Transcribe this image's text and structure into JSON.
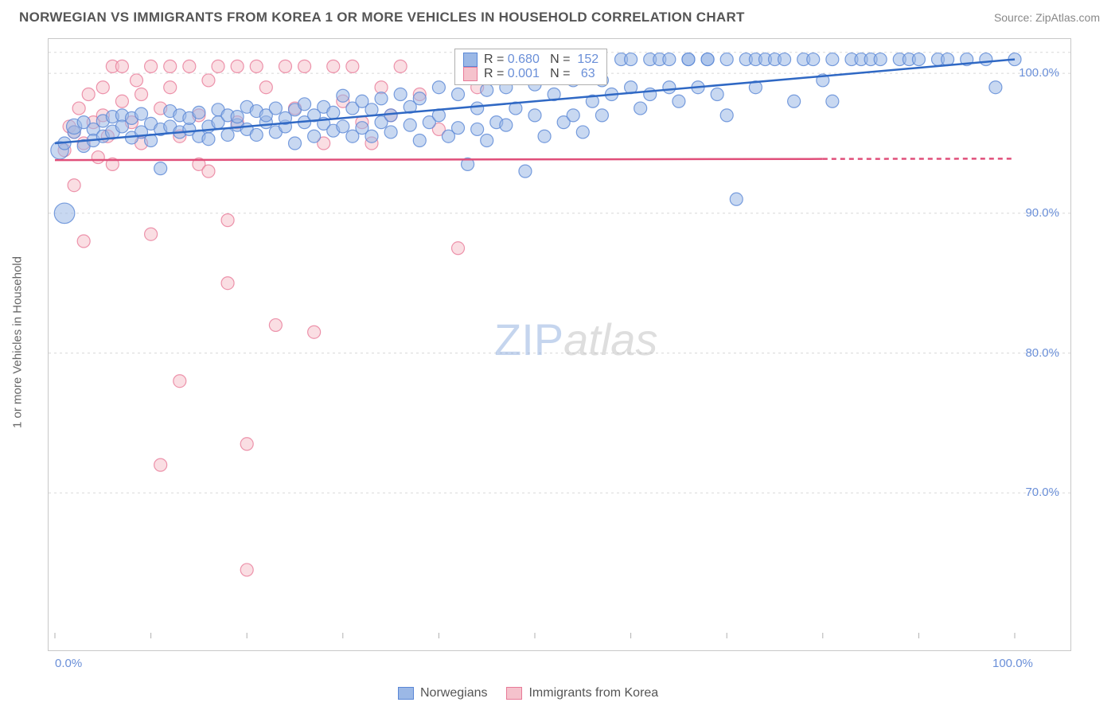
{
  "title": "NORWEGIAN VS IMMIGRANTS FROM KOREA 1 OR MORE VEHICLES IN HOUSEHOLD CORRELATION CHART",
  "source": "Source: ZipAtlas.com",
  "y_axis_label": "1 or more Vehicles in Household",
  "watermark_zip": "ZIP",
  "watermark_atlas": "atlas",
  "colors": {
    "blue_fill": "#9bb8e6",
    "blue_stroke": "#5a87d6",
    "pink_fill": "#f5c2cc",
    "pink_stroke": "#e87a98",
    "grid": "#d8d8d8",
    "axis": "#b0b0b0",
    "text_tick": "#6a8fd8",
    "blue_line": "#2f68c4",
    "pink_line": "#e04f7a"
  },
  "chart": {
    "type": "scatter",
    "xlim": [
      0,
      100
    ],
    "ylim": [
      60,
      102
    ],
    "x_ticks": [
      0,
      10,
      20,
      30,
      40,
      50,
      60,
      70,
      80,
      90,
      100
    ],
    "x_tick_labels": {
      "0": "0.0%",
      "100": "100.0%"
    },
    "y_ticks": [
      70,
      80,
      90,
      100
    ],
    "y_tick_labels": {
      "70": "70.0%",
      "80": "80.0%",
      "90": "90.0%",
      "100": "100.0%"
    },
    "marker_radius_base": 8,
    "marker_opacity": 0.55,
    "line_width": 2.5
  },
  "legend_top": {
    "rows": [
      {
        "swatch_fill": "#9bb8e6",
        "swatch_stroke": "#5a87d6",
        "r_label": "R = ",
        "r_val": "0.680",
        "n_label": "   N = ",
        "n_val": " 152"
      },
      {
        "swatch_fill": "#f5c2cc",
        "swatch_stroke": "#e87a98",
        "r_label": "R = ",
        "r_val": "0.001",
        "n_label": "   N = ",
        "n_val": "  63"
      }
    ]
  },
  "legend_bottom": [
    {
      "swatch_fill": "#9bb8e6",
      "swatch_stroke": "#5a87d6",
      "label": "Norwegians"
    },
    {
      "swatch_fill": "#f5c2cc",
      "swatch_stroke": "#e87a98",
      "label": "Immigrants from Korea"
    }
  ],
  "trend_lines": {
    "blue": {
      "x1": 0,
      "y1": 95.0,
      "x2": 100,
      "y2": 101.0,
      "solid_until_x": 100
    },
    "pink": {
      "x1": 0,
      "y1": 93.8,
      "x2": 100,
      "y2": 93.9,
      "solid_until_x": 80
    }
  },
  "series_blue": [
    [
      0.5,
      94.5,
      1.4
    ],
    [
      1,
      95,
      1
    ],
    [
      1,
      90,
      1.6
    ],
    [
      2,
      95.8,
      1
    ],
    [
      2,
      96.2,
      1.2
    ],
    [
      3,
      94.8,
      1
    ],
    [
      3,
      96.5,
      1
    ],
    [
      4,
      96.0,
      1
    ],
    [
      4,
      95.2,
      1
    ],
    [
      5,
      96.6,
      1
    ],
    [
      5,
      95.5,
      1
    ],
    [
      6,
      96.9,
      1
    ],
    [
      6,
      95.8,
      1.1
    ],
    [
      7,
      97.0,
      1
    ],
    [
      7,
      96.2,
      1
    ],
    [
      8,
      95.4,
      1
    ],
    [
      8,
      96.8,
      1
    ],
    [
      9,
      95.8,
      1
    ],
    [
      9,
      97.1,
      1
    ],
    [
      10,
      96.4,
      1
    ],
    [
      10,
      95.2,
      1
    ],
    [
      11,
      96.0,
      1
    ],
    [
      11,
      93.2,
      1
    ],
    [
      12,
      97.3,
      1
    ],
    [
      12,
      96.2,
      1
    ],
    [
      13,
      95.8,
      1
    ],
    [
      13,
      97.0,
      1
    ],
    [
      14,
      96.0,
      1
    ],
    [
      14,
      96.8,
      1
    ],
    [
      15,
      95.5,
      1
    ],
    [
      15,
      97.2,
      1
    ],
    [
      16,
      96.2,
      1
    ],
    [
      16,
      95.3,
      1
    ],
    [
      17,
      97.4,
      1
    ],
    [
      17,
      96.5,
      1
    ],
    [
      18,
      95.6,
      1
    ],
    [
      18,
      97.0,
      1
    ],
    [
      19,
      96.3,
      1
    ],
    [
      19,
      96.9,
      1
    ],
    [
      20,
      97.6,
      1
    ],
    [
      20,
      96.0,
      1
    ],
    [
      21,
      95.6,
      1
    ],
    [
      21,
      97.3,
      1
    ],
    [
      22,
      96.5,
      1
    ],
    [
      22,
      97.0,
      1
    ],
    [
      23,
      95.8,
      1
    ],
    [
      23,
      97.5,
      1
    ],
    [
      24,
      96.2,
      1
    ],
    [
      24,
      96.8,
      1
    ],
    [
      25,
      95.0,
      1
    ],
    [
      25,
      97.4,
      1
    ],
    [
      26,
      96.5,
      1
    ],
    [
      26,
      97.8,
      1
    ],
    [
      27,
      95.5,
      1
    ],
    [
      27,
      97.0,
      1
    ],
    [
      28,
      96.4,
      1
    ],
    [
      28,
      97.6,
      1
    ],
    [
      29,
      95.9,
      1
    ],
    [
      29,
      97.2,
      1
    ],
    [
      30,
      98.4,
      1
    ],
    [
      30,
      96.2,
      1
    ],
    [
      31,
      95.5,
      1
    ],
    [
      31,
      97.5,
      1
    ],
    [
      32,
      98.0,
      1
    ],
    [
      32,
      96.1,
      1
    ],
    [
      33,
      97.4,
      1
    ],
    [
      33,
      95.5,
      1
    ],
    [
      34,
      98.2,
      1
    ],
    [
      34,
      96.5,
      1
    ],
    [
      35,
      97.0,
      1
    ],
    [
      35,
      95.8,
      1
    ],
    [
      36,
      98.5,
      1
    ],
    [
      37,
      96.3,
      1
    ],
    [
      37,
      97.6,
      1
    ],
    [
      38,
      98.2,
      1
    ],
    [
      38,
      95.2,
      1
    ],
    [
      39,
      96.5,
      1
    ],
    [
      40,
      99.0,
      1
    ],
    [
      40,
      97.0,
      1
    ],
    [
      41,
      95.5,
      1
    ],
    [
      42,
      98.5,
      1
    ],
    [
      42,
      96.1,
      1
    ],
    [
      43,
      93.5,
      1
    ],
    [
      44,
      97.5,
      1
    ],
    [
      44,
      96.0,
      1
    ],
    [
      45,
      98.8,
      1
    ],
    [
      45,
      95.2,
      1
    ],
    [
      46,
      96.5,
      1
    ],
    [
      47,
      99.0,
      1
    ],
    [
      47,
      96.3,
      1
    ],
    [
      48,
      97.5,
      1
    ],
    [
      49,
      93.0,
      1
    ],
    [
      50,
      99.2,
      1
    ],
    [
      50,
      97.0,
      1
    ],
    [
      51,
      95.5,
      1
    ],
    [
      52,
      98.5,
      1
    ],
    [
      53,
      96.5,
      1
    ],
    [
      54,
      99.5,
      1
    ],
    [
      54,
      97.0,
      1
    ],
    [
      55,
      95.8,
      1
    ],
    [
      56,
      98.0,
      1
    ],
    [
      57,
      99.5,
      1
    ],
    [
      57,
      97.0,
      1
    ],
    [
      58,
      98.5,
      1
    ],
    [
      59,
      101.0,
      1
    ],
    [
      60,
      99.0,
      1
    ],
    [
      60,
      101.0,
      1
    ],
    [
      61,
      97.5,
      1
    ],
    [
      62,
      101.0,
      1
    ],
    [
      62,
      98.5,
      1
    ],
    [
      63,
      101.0,
      1
    ],
    [
      64,
      99.0,
      1
    ],
    [
      64,
      101.0,
      1
    ],
    [
      65,
      98.0,
      1
    ],
    [
      66,
      101.0,
      1
    ],
    [
      66,
      101.0,
      1
    ],
    [
      67,
      99.0,
      1
    ],
    [
      68,
      101.0,
      1
    ],
    [
      68,
      101.0,
      1
    ],
    [
      69,
      98.5,
      1
    ],
    [
      70,
      101.0,
      1
    ],
    [
      70,
      97.0,
      1
    ],
    [
      71,
      91.0,
      1
    ],
    [
      72,
      101.0,
      1
    ],
    [
      73,
      101.0,
      1
    ],
    [
      73,
      99.0,
      1
    ],
    [
      74,
      101.0,
      1
    ],
    [
      75,
      101.0,
      1
    ],
    [
      76,
      101.0,
      1
    ],
    [
      77,
      98.0,
      1
    ],
    [
      78,
      101.0,
      1
    ],
    [
      79,
      101.0,
      1
    ],
    [
      80,
      99.5,
      1
    ],
    [
      81,
      101.0,
      1
    ],
    [
      81,
      98.0,
      1
    ],
    [
      83,
      101.0,
      1
    ],
    [
      84,
      101.0,
      1
    ],
    [
      85,
      101.0,
      1
    ],
    [
      86,
      101.0,
      1
    ],
    [
      88,
      101.0,
      1
    ],
    [
      89,
      101.0,
      1
    ],
    [
      90,
      101.0,
      1
    ],
    [
      92,
      101.0,
      1
    ],
    [
      93,
      101.0,
      1
    ],
    [
      95,
      101.0,
      1
    ],
    [
      97,
      101.0,
      1
    ],
    [
      98,
      99.0,
      1
    ],
    [
      100,
      101.0,
      1
    ]
  ],
  "series_pink": [
    [
      1,
      94.5,
      1
    ],
    [
      1.5,
      96.2,
      1
    ],
    [
      2,
      95.8,
      1
    ],
    [
      2,
      92.0,
      1
    ],
    [
      2.5,
      97.5,
      1
    ],
    [
      3,
      95.0,
      1
    ],
    [
      3,
      88.0,
      1
    ],
    [
      3.5,
      98.5,
      1
    ],
    [
      4,
      96.5,
      1
    ],
    [
      4.5,
      94.0,
      1
    ],
    [
      5,
      99.0,
      1
    ],
    [
      5,
      97.0,
      1
    ],
    [
      5.5,
      95.5,
      1
    ],
    [
      6,
      100.5,
      1
    ],
    [
      6,
      93.5,
      1
    ],
    [
      7,
      98.0,
      1
    ],
    [
      7,
      100.5,
      1
    ],
    [
      8,
      96.5,
      1
    ],
    [
      8.5,
      99.5,
      1
    ],
    [
      9,
      95.0,
      1
    ],
    [
      9,
      98.5,
      1
    ],
    [
      10,
      100.5,
      1
    ],
    [
      10,
      88.5,
      1
    ],
    [
      11,
      97.5,
      1
    ],
    [
      11,
      72.0,
      1
    ],
    [
      12,
      99.0,
      1
    ],
    [
      12,
      100.5,
      1
    ],
    [
      13,
      95.5,
      1
    ],
    [
      13,
      78.0,
      1
    ],
    [
      14,
      100.5,
      1
    ],
    [
      15,
      97.0,
      1
    ],
    [
      15,
      93.5,
      1
    ],
    [
      16,
      93.0,
      1
    ],
    [
      16,
      99.5,
      1
    ],
    [
      17,
      100.5,
      1
    ],
    [
      18,
      85.0,
      1
    ],
    [
      18,
      89.5,
      1
    ],
    [
      19,
      100.5,
      1
    ],
    [
      19,
      96.5,
      1
    ],
    [
      20,
      73.5,
      1
    ],
    [
      20,
      64.5,
      1
    ],
    [
      21,
      100.5,
      1
    ],
    [
      22,
      99.0,
      1
    ],
    [
      23,
      82.0,
      1
    ],
    [
      24,
      100.5,
      1
    ],
    [
      25,
      97.5,
      1
    ],
    [
      26,
      100.5,
      1
    ],
    [
      27,
      81.5,
      1
    ],
    [
      28,
      95.0,
      1
    ],
    [
      29,
      100.5,
      1
    ],
    [
      30,
      98.0,
      1
    ],
    [
      31,
      100.5,
      1
    ],
    [
      32,
      96.5,
      1
    ],
    [
      33,
      95.0,
      1
    ],
    [
      34,
      99.0,
      1
    ],
    [
      35,
      97.0,
      1
    ],
    [
      36,
      100.5,
      1
    ],
    [
      38,
      98.5,
      1
    ],
    [
      40,
      96.0,
      1
    ],
    [
      42,
      87.5,
      1
    ],
    [
      44,
      99.0,
      1
    ],
    [
      46,
      100.5,
      1
    ]
  ]
}
